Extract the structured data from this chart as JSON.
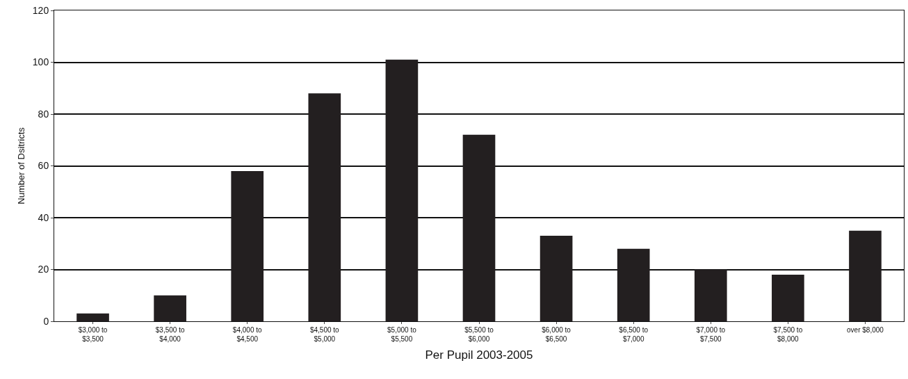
{
  "chart_data": {
    "type": "bar",
    "xlabel": "Per Pupil 2003-2005",
    "ylabel": "Number of Dsitricts",
    "categories": [
      "$3,000 to\n$3,500",
      "$3,500 to\n$4,000",
      "$4,000 to\n$4,500",
      "$4,500 to\n$5,000",
      "$5,000 to\n$5,500",
      "$5,500 to\n$6,000",
      "$6,000 to\n$6,500",
      "$6,500 to\n$7,000",
      "$7,000 to\n$7,500",
      "$7,500 to\n$8,000",
      "over $8,000"
    ],
    "values": [
      3,
      10,
      58,
      88,
      101,
      72,
      33,
      28,
      20,
      18,
      35
    ],
    "color": "#231f20",
    "ylim": [
      0,
      120
    ],
    "yticks": [
      0,
      20,
      40,
      60,
      80,
      100,
      120
    ],
    "grid": "y",
    "legend": false
  }
}
